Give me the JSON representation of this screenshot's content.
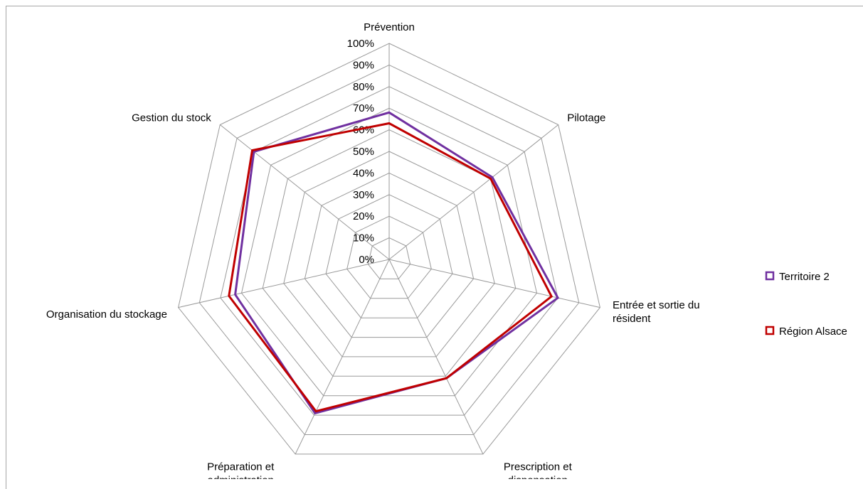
{
  "chart_data": {
    "type": "radar",
    "categories": [
      "Prévention",
      "Pilotage",
      "Entrée et sortie du résident",
      "Prescription et dispensation",
      "Préparation et administration",
      "Organisation du stockage",
      "Gestion du stock"
    ],
    "category_lines": [
      [
        "Prévention"
      ],
      [
        "Pilotage"
      ],
      [
        "Entrée et sortie du",
        "résident"
      ],
      [
        "Prescription et",
        "dispensation"
      ],
      [
        "Préparation et",
        "administration"
      ],
      [
        "Organisation du stockage"
      ],
      [
        "Gestion du stock"
      ]
    ],
    "ticks": [
      "0%",
      "10%",
      "20%",
      "30%",
      "40%",
      "50%",
      "60%",
      "70%",
      "80%",
      "90%",
      "100%"
    ],
    "ylim": [
      0,
      100
    ],
    "series": [
      {
        "name": "Territoire 2",
        "color": "#7030a0",
        "values": [
          68,
          61,
          80,
          61,
          79,
          73,
          80
        ]
      },
      {
        "name": "Région Alsace",
        "color": "#c00000",
        "values": [
          63,
          60,
          77,
          61,
          78,
          76,
          81
        ]
      }
    ],
    "grid": true,
    "legend_position": "right"
  }
}
